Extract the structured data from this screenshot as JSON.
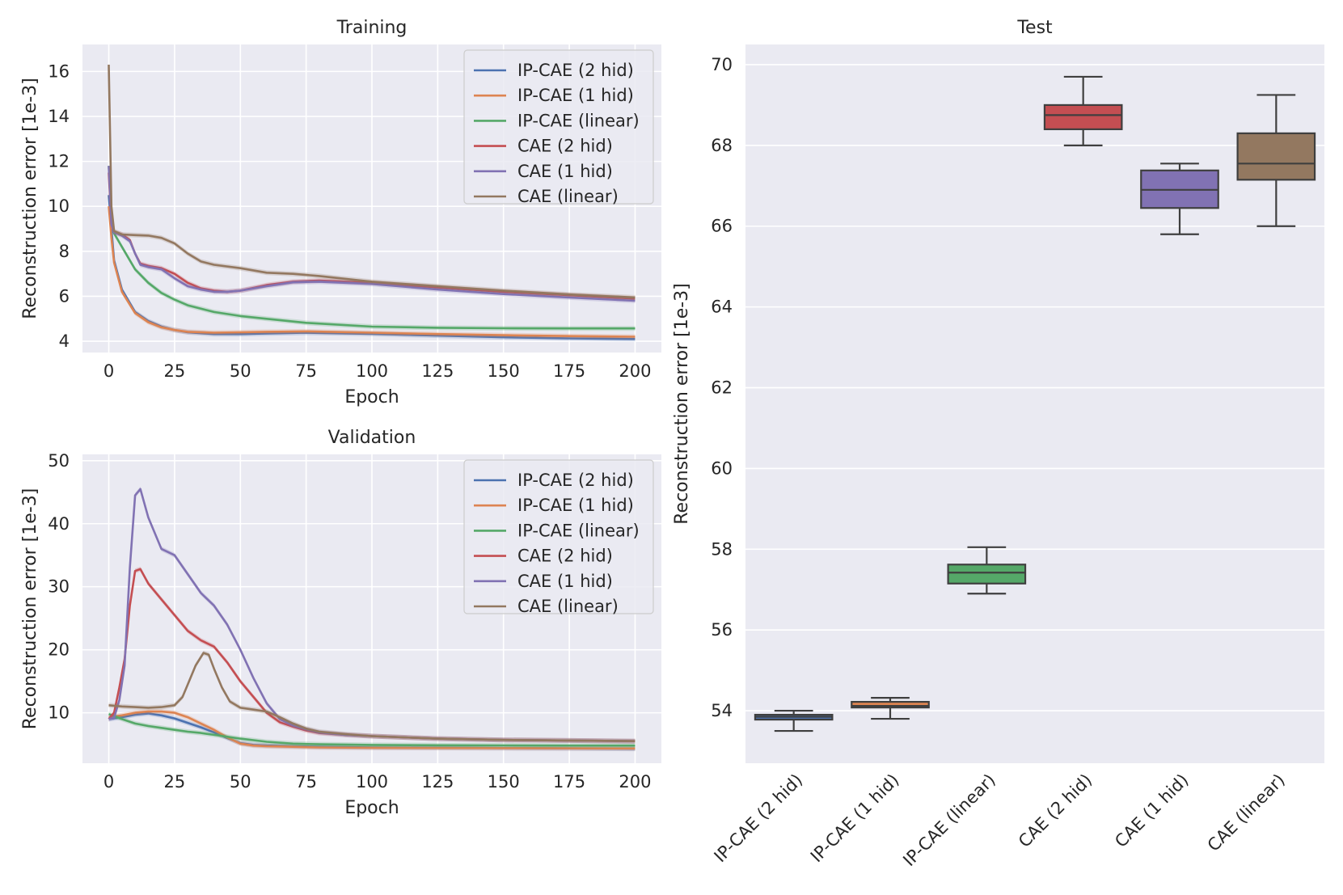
{
  "colors": {
    "IP-CAE (2 hid)": "#4c72b0",
    "IP-CAE (1 hid)": "#dd8452",
    "IP-CAE (linear)": "#55a868",
    "CAE (2 hid)": "#c44e52",
    "CAE (1 hid)": "#8172b3",
    "CAE (linear)": "#937860",
    "background": "#eaeaf2",
    "grid": "#ffffff"
  },
  "chart_data": [
    {
      "type": "line",
      "title": "Training",
      "xlabel": "Epoch",
      "ylabel": "Reconstruction error [1e-3]",
      "xlim": [
        -10,
        210
      ],
      "ylim": [
        3.5,
        17.2
      ],
      "xticks": [
        0,
        25,
        50,
        75,
        100,
        125,
        150,
        175,
        200
      ],
      "yticks": [
        4,
        6,
        8,
        10,
        12,
        14,
        16
      ],
      "grid": true,
      "legend": "top-right",
      "series": [
        {
          "name": "IP-CAE (2 hid)",
          "x": [
            0,
            1,
            2,
            5,
            10,
            15,
            20,
            25,
            30,
            40,
            50,
            60,
            75,
            100,
            125,
            150,
            175,
            200
          ],
          "y": [
            10.5,
            9.0,
            7.6,
            6.3,
            5.3,
            4.9,
            4.65,
            4.5,
            4.4,
            4.32,
            4.32,
            4.35,
            4.38,
            4.33,
            4.25,
            4.18,
            4.13,
            4.1
          ]
        },
        {
          "name": "IP-CAE (1 hid)",
          "x": [
            0,
            1,
            2,
            5,
            10,
            15,
            20,
            25,
            30,
            40,
            50,
            60,
            75,
            100,
            125,
            150,
            175,
            200
          ],
          "y": [
            10.0,
            8.6,
            7.5,
            6.2,
            5.25,
            4.85,
            4.62,
            4.5,
            4.42,
            4.38,
            4.4,
            4.42,
            4.44,
            4.38,
            4.32,
            4.27,
            4.23,
            4.2
          ]
        },
        {
          "name": "IP-CAE (linear)",
          "x": [
            0,
            1,
            2,
            5,
            10,
            15,
            20,
            25,
            30,
            40,
            50,
            60,
            75,
            100,
            125,
            150,
            175,
            200
          ],
          "y": [
            11.8,
            9.5,
            8.8,
            8.2,
            7.2,
            6.6,
            6.15,
            5.85,
            5.6,
            5.3,
            5.12,
            5.0,
            4.82,
            4.65,
            4.6,
            4.58,
            4.57,
            4.57
          ]
        },
        {
          "name": "CAE (2 hid)",
          "x": [
            0,
            1,
            2,
            5,
            8,
            10,
            12,
            15,
            20,
            25,
            30,
            35,
            40,
            45,
            50,
            60,
            70,
            80,
            100,
            125,
            150,
            175,
            200
          ],
          "y": [
            11.5,
            9.2,
            8.85,
            8.75,
            8.5,
            7.9,
            7.45,
            7.35,
            7.25,
            7.0,
            6.6,
            6.35,
            6.25,
            6.2,
            6.25,
            6.5,
            6.65,
            6.7,
            6.6,
            6.4,
            6.2,
            6.05,
            5.9
          ]
        },
        {
          "name": "CAE (1 hid)",
          "x": [
            0,
            1,
            2,
            5,
            8,
            10,
            12,
            15,
            20,
            25,
            30,
            35,
            40,
            45,
            50,
            60,
            70,
            80,
            100,
            125,
            150,
            175,
            200
          ],
          "y": [
            11.8,
            9.2,
            8.85,
            8.7,
            8.45,
            7.9,
            7.4,
            7.3,
            7.2,
            6.8,
            6.45,
            6.3,
            6.2,
            6.2,
            6.25,
            6.45,
            6.62,
            6.65,
            6.55,
            6.3,
            6.1,
            5.95,
            5.8
          ]
        },
        {
          "name": "CAE (linear)",
          "x": [
            0,
            1,
            2,
            5,
            10,
            15,
            20,
            25,
            30,
            35,
            40,
            50,
            60,
            70,
            80,
            100,
            125,
            150,
            175,
            200
          ],
          "y": [
            16.3,
            10.0,
            8.9,
            8.75,
            8.72,
            8.7,
            8.6,
            8.35,
            7.9,
            7.55,
            7.4,
            7.25,
            7.05,
            7.0,
            6.9,
            6.65,
            6.45,
            6.25,
            6.08,
            5.95
          ]
        }
      ]
    },
    {
      "type": "line",
      "title": "Validation",
      "xlabel": "Epoch",
      "ylabel": "Reconstruction error [1e-3]",
      "xlim": [
        -10,
        210
      ],
      "ylim": [
        2.0,
        51.0
      ],
      "xticks": [
        0,
        25,
        50,
        75,
        100,
        125,
        150,
        175,
        200
      ],
      "yticks": [
        10,
        20,
        30,
        40,
        50
      ],
      "grid": true,
      "legend": "top-right",
      "series": [
        {
          "name": "IP-CAE (2 hid)",
          "x": [
            0,
            5,
            10,
            15,
            20,
            25,
            30,
            35,
            40,
            45,
            50,
            55,
            60,
            70,
            80,
            100,
            150,
            200
          ],
          "y": [
            9.0,
            9.3,
            9.7,
            9.9,
            9.6,
            9.1,
            8.4,
            7.7,
            6.9,
            6.0,
            5.2,
            4.9,
            4.8,
            4.7,
            4.6,
            4.5,
            4.4,
            4.3
          ]
        },
        {
          "name": "IP-CAE (1 hid)",
          "x": [
            0,
            5,
            10,
            15,
            20,
            25,
            30,
            35,
            40,
            45,
            50,
            55,
            60,
            70,
            80,
            100,
            150,
            200
          ],
          "y": [
            9.3,
            9.6,
            10.0,
            10.2,
            10.2,
            10.0,
            9.3,
            8.3,
            7.3,
            6.1,
            5.1,
            4.8,
            4.7,
            4.6,
            4.5,
            4.45,
            4.4,
            4.35
          ]
        },
        {
          "name": "IP-CAE (linear)",
          "x": [
            0,
            5,
            10,
            15,
            20,
            25,
            30,
            35,
            40,
            50,
            60,
            70,
            80,
            100,
            125,
            150,
            175,
            200
          ],
          "y": [
            9.8,
            9.0,
            8.3,
            7.9,
            7.6,
            7.3,
            7.0,
            6.8,
            6.5,
            5.9,
            5.4,
            5.1,
            5.0,
            4.9,
            4.85,
            4.82,
            4.8,
            4.8
          ]
        },
        {
          "name": "CAE (2 hid)",
          "x": [
            0,
            2,
            4,
            6,
            8,
            10,
            12,
            15,
            20,
            25,
            30,
            35,
            40,
            45,
            50,
            55,
            60,
            65,
            70,
            75,
            80,
            90,
            100,
            125,
            150,
            175,
            200
          ],
          "y": [
            9.0,
            10.0,
            14.0,
            18.5,
            27.0,
            32.5,
            32.8,
            30.5,
            28.0,
            25.5,
            23.0,
            21.5,
            20.5,
            18.0,
            15.0,
            12.5,
            10.0,
            8.5,
            7.8,
            7.2,
            6.8,
            6.5,
            6.3,
            5.9,
            5.7,
            5.6,
            5.5
          ]
        },
        {
          "name": "CAE (1 hid)",
          "x": [
            0,
            2,
            4,
            6,
            8,
            10,
            12,
            15,
            20,
            25,
            30,
            35,
            40,
            45,
            50,
            55,
            60,
            65,
            70,
            75,
            80,
            90,
            100,
            125,
            150,
            175,
            200
          ],
          "y": [
            9.0,
            9.2,
            12.0,
            17.5,
            33.0,
            44.5,
            45.5,
            41.0,
            36.0,
            35.0,
            32.0,
            29.0,
            27.0,
            24.0,
            20.0,
            15.5,
            11.5,
            9.0,
            8.0,
            7.4,
            6.9,
            6.5,
            6.3,
            5.9,
            5.7,
            5.6,
            5.5
          ]
        },
        {
          "name": "CAE (linear)",
          "x": [
            0,
            5,
            10,
            15,
            20,
            25,
            28,
            30,
            33,
            36,
            38,
            40,
            43,
            46,
            50,
            55,
            60,
            65,
            70,
            75,
            80,
            90,
            100,
            125,
            150,
            175,
            200
          ],
          "y": [
            11.2,
            11.0,
            10.9,
            10.8,
            10.9,
            11.2,
            12.5,
            14.5,
            17.5,
            19.5,
            19.2,
            17.0,
            14.0,
            11.8,
            10.8,
            10.5,
            10.2,
            9.3,
            8.3,
            7.5,
            7.0,
            6.6,
            6.3,
            5.9,
            5.7,
            5.6,
            5.5
          ]
        }
      ]
    },
    {
      "type": "box",
      "title": "Test",
      "xlabel": "",
      "ylabel": "Reconstruction error [1e-3]",
      "ylim": [
        52.7,
        70.5
      ],
      "yticks": [
        54,
        56,
        58,
        60,
        62,
        64,
        66,
        68,
        70
      ],
      "grid": true,
      "categories": [
        "IP-CAE (2 hid)",
        "IP-CAE (1 hid)",
        "IP-CAE (linear)",
        "CAE (2 hid)",
        "CAE (1 hid)",
        "CAE (linear)"
      ],
      "boxes": [
        {
          "min": 53.5,
          "q1": 53.78,
          "median": 53.85,
          "q3": 53.9,
          "max": 54.0
        },
        {
          "min": 53.8,
          "q1": 54.08,
          "median": 54.12,
          "q3": 54.22,
          "max": 54.32
        },
        {
          "min": 56.9,
          "q1": 57.15,
          "median": 57.42,
          "q3": 57.62,
          "max": 58.05
        },
        {
          "min": 68.0,
          "q1": 68.4,
          "median": 68.75,
          "q3": 69.0,
          "max": 69.7
        },
        {
          "min": 65.8,
          "q1": 66.45,
          "median": 66.9,
          "q3": 67.38,
          "max": 67.55
        },
        {
          "min": 66.0,
          "q1": 67.15,
          "median": 67.55,
          "q3": 68.3,
          "max": 69.25
        }
      ]
    }
  ]
}
